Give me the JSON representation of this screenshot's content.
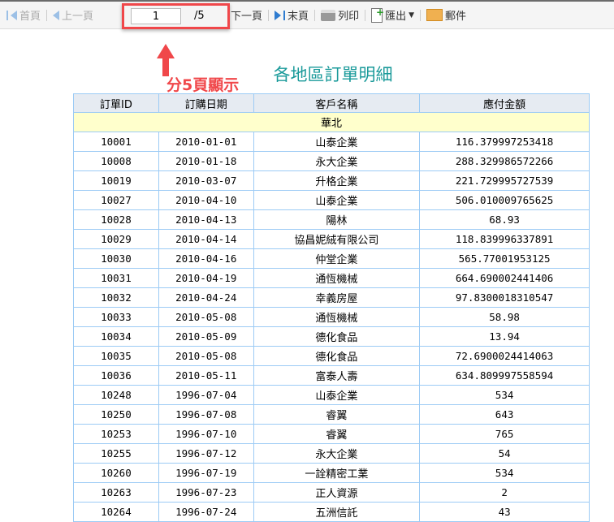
{
  "toolbar": {
    "first": "首頁",
    "prev": "上一頁",
    "page_value": "1",
    "page_total": "/5",
    "next": "下一頁",
    "last": "末頁",
    "print": "列印",
    "export": "匯出",
    "mail": "郵件"
  },
  "annotation": {
    "text": "分5頁顯示",
    "color": "#f0474a"
  },
  "report": {
    "title": "各地區訂單明細",
    "columns": [
      "訂單ID",
      "訂購日期",
      "客戶名稱",
      "應付金額"
    ],
    "group": "華北",
    "rows": [
      [
        "10001",
        "2010-01-01",
        "山泰企業",
        "116.379997253418"
      ],
      [
        "10008",
        "2010-01-18",
        "永大企業",
        "288.329986572266"
      ],
      [
        "10019",
        "2010-03-07",
        "升格企業",
        "221.729995727539"
      ],
      [
        "10027",
        "2010-04-10",
        "山泰企業",
        "506.010009765625"
      ],
      [
        "10028",
        "2010-04-13",
        "陽林",
        "68.93"
      ],
      [
        "10029",
        "2010-04-14",
        "協昌妮絨有限公司",
        "118.839996337891"
      ],
      [
        "10030",
        "2010-04-16",
        "仲堂企業",
        "565.77001953125"
      ],
      [
        "10031",
        "2010-04-19",
        "通恆機械",
        "664.690002441406"
      ],
      [
        "10032",
        "2010-04-24",
        "幸義房屋",
        "97.8300018310547"
      ],
      [
        "10033",
        "2010-05-08",
        "通恆機械",
        "58.98"
      ],
      [
        "10034",
        "2010-05-09",
        "德化食品",
        "13.94"
      ],
      [
        "10035",
        "2010-05-08",
        "德化食品",
        "72.6900024414063"
      ],
      [
        "10036",
        "2010-05-11",
        "富泰人壽",
        "634.809997558594"
      ],
      [
        "10248",
        "1996-07-04",
        "山泰企業",
        "534"
      ],
      [
        "10250",
        "1996-07-08",
        "睿翼",
        "643"
      ],
      [
        "10253",
        "1996-07-10",
        "睿翼",
        "765"
      ],
      [
        "10255",
        "1996-07-12",
        "永大企業",
        "54"
      ],
      [
        "10260",
        "1996-07-19",
        "一詮精密工業",
        "534"
      ],
      [
        "10263",
        "1996-07-23",
        "正人資源",
        "2"
      ],
      [
        "10264",
        "1996-07-24",
        "五洲信託",
        "43"
      ]
    ]
  }
}
